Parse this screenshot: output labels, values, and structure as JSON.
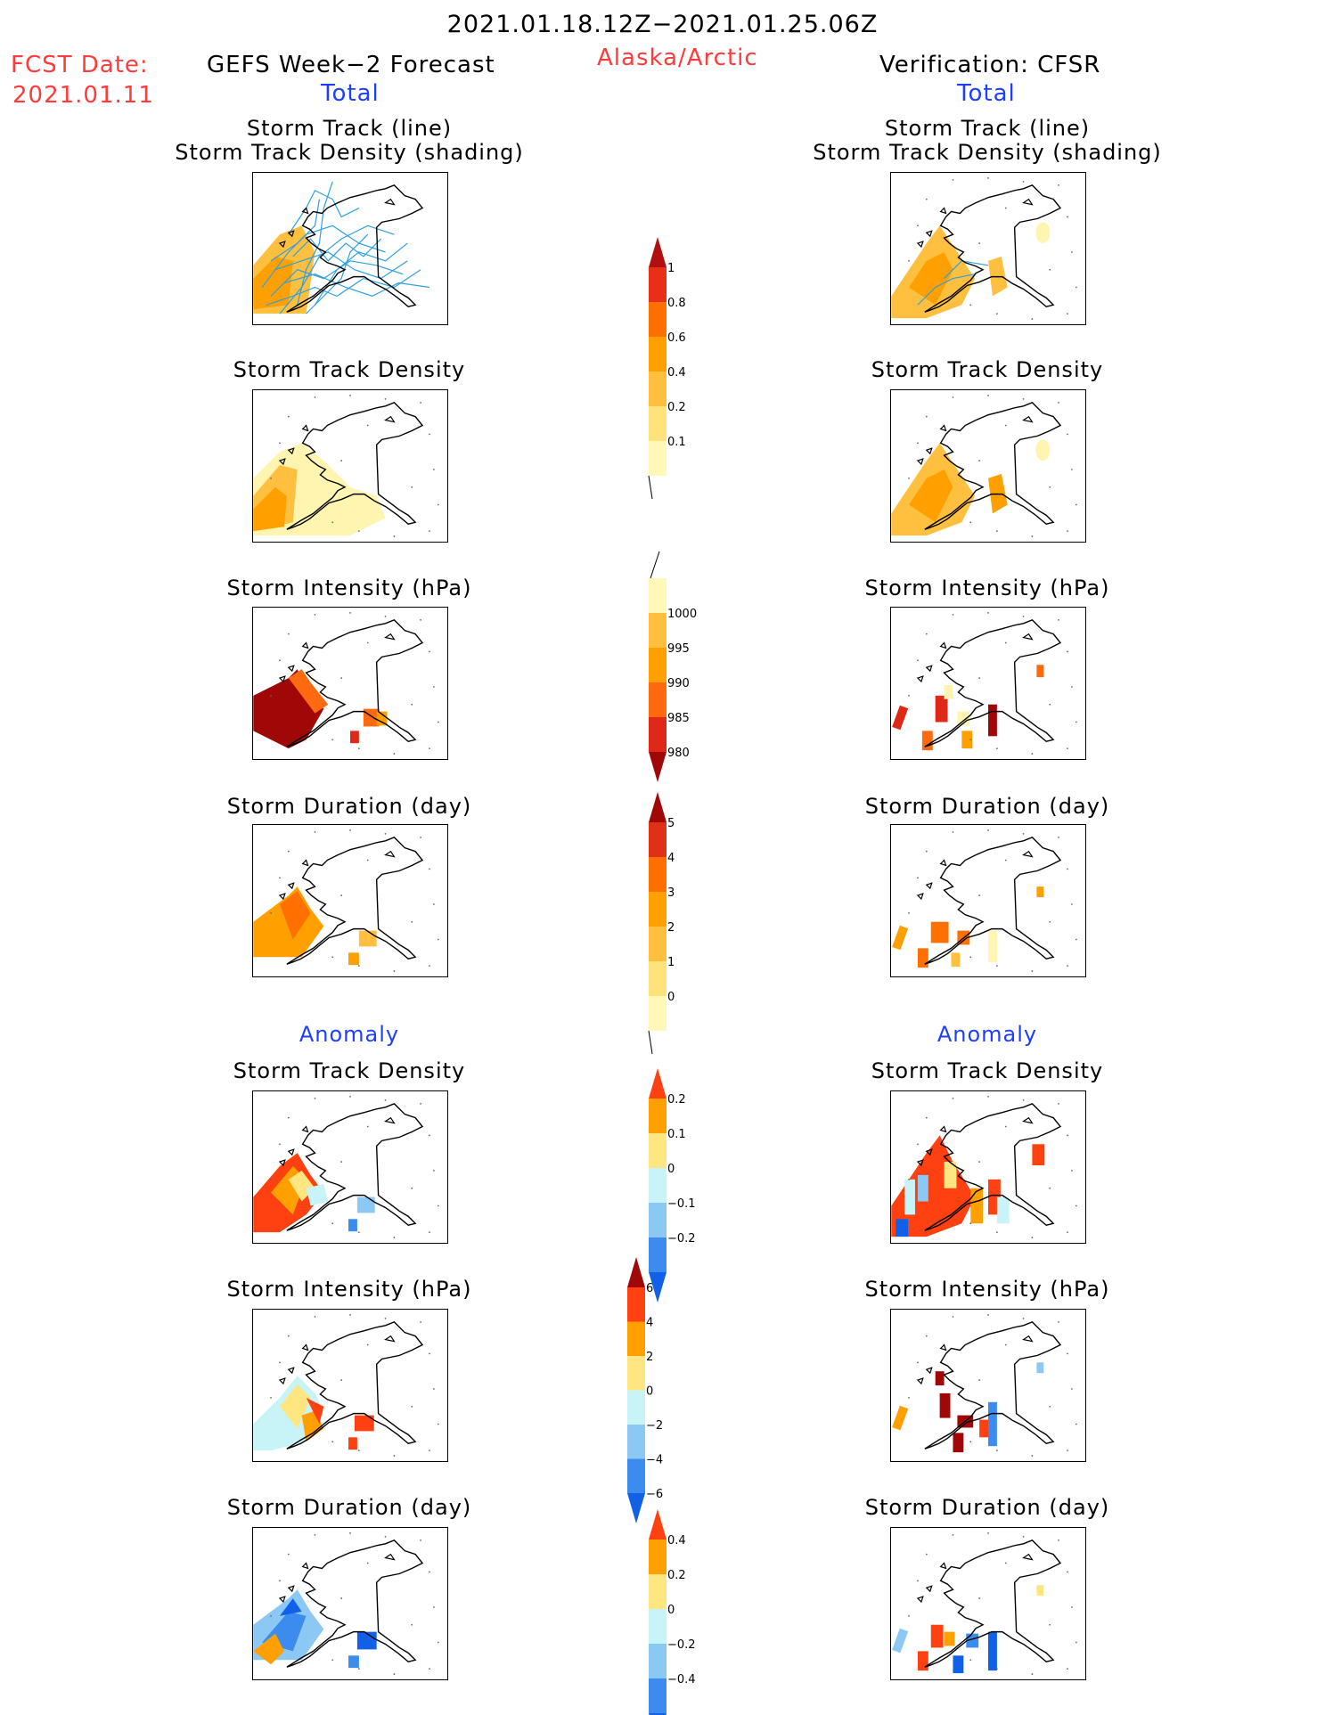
{
  "header": {
    "title": "2021.01.18.12Z−2021.01.25.06Z",
    "fcst_label": "FCST Date:",
    "fcst_date": "2021.01.11",
    "left_title": "GEFS Week−2 Forecast",
    "left_sub": "Total",
    "region": "Alaska/Arctic",
    "right_title": "Verification: CFSR",
    "right_sub": "Total"
  },
  "sections": {
    "anomaly_left": "Anomaly",
    "anomaly_right": "Anomaly"
  },
  "panels": {
    "p1_line1": "Storm Track (line)",
    "p1_line2": "Storm Track Density (shading)",
    "p2": "Storm Track Density",
    "p3": "Storm Intensity (hPa)",
    "p4": "Storm Duration (day)",
    "p5": "Storm Track Density",
    "p6": "Storm Intensity (hPa)",
    "p7": "Storm Duration (day)"
  },
  "colorbars": [
    {
      "id": "density",
      "labels": [
        "0.1",
        "0.2",
        "0.4",
        "0.6",
        "0.8",
        "1"
      ],
      "colors": [
        "#fff8b8",
        "#ffe27a",
        "#ffc040",
        "#ffa000",
        "#ff7000",
        "#e83018",
        "#b01010"
      ],
      "top_arrow": true,
      "bottom_arrow": false
    },
    {
      "id": "intensity",
      "labels": [
        "1000",
        "995",
        "990",
        "985",
        "980"
      ],
      "colors": [
        "#fff8b8",
        "#ffc040",
        "#ffa000",
        "#ff6a10",
        "#e02818",
        "#a00808"
      ],
      "top_arrow": false,
      "bottom_arrow": true
    },
    {
      "id": "duration",
      "labels": [
        "0",
        "1",
        "2",
        "3",
        "4",
        "5"
      ],
      "colors": [
        "#fff8b8",
        "#ffe27a",
        "#ffc040",
        "#ffa000",
        "#ff7000",
        "#e03018",
        "#a00808"
      ],
      "top_arrow": true,
      "bottom_arrow": false
    },
    {
      "id": "anom_density",
      "labels": [
        "0.2",
        "0.1",
        "0",
        "−0.1",
        "−0.2"
      ],
      "colors": [
        "#ff4010",
        "#ffa000",
        "#ffe680",
        "#c8f4f8",
        "#8cc8f4",
        "#3c8cf0",
        "#1060e8"
      ],
      "top_arrow": true,
      "bottom_arrow": true
    },
    {
      "id": "anom_intensity",
      "labels": [
        "6",
        "4",
        "2",
        "0",
        "−2",
        "−4",
        "−6"
      ],
      "colors": [
        "#a00808",
        "#ff4010",
        "#ffa000",
        "#ffe680",
        "#c8f4f8",
        "#8cc8f4",
        "#3c8cf0",
        "#1060e8"
      ],
      "top_arrow": true,
      "bottom_arrow": true
    },
    {
      "id": "anom_duration",
      "labels": [
        "0.4",
        "0.2",
        "0",
        "−0.2",
        "−0.4"
      ],
      "colors": [
        "#ff4010",
        "#ffa000",
        "#ffe680",
        "#c8f4f8",
        "#8cc8f4",
        "#3c8cf0",
        "#1060e8"
      ],
      "top_arrow": true,
      "bottom_arrow": true
    }
  ]
}
